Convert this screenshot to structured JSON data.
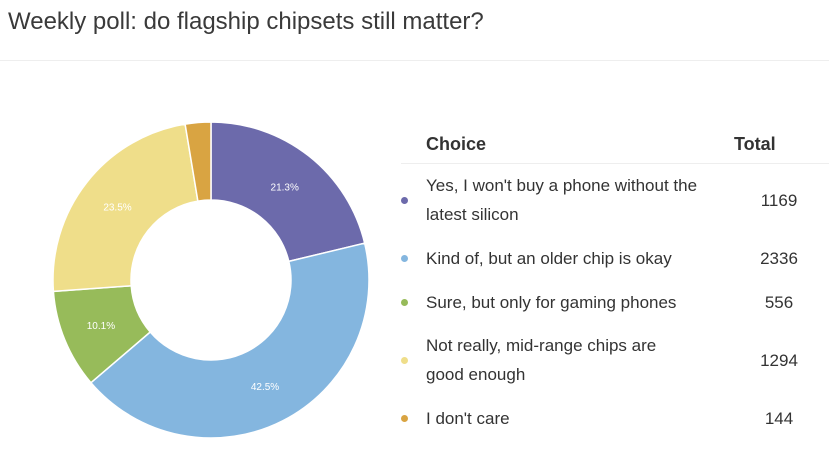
{
  "title": "Weekly poll: do flagship chipsets still matter?",
  "chart_data": {
    "type": "pie",
    "donut": true,
    "title": "Weekly poll: do flagship chipsets still matter?",
    "categories": [
      "Yes, I won't buy a phone without the latest silicon",
      "Kind of, but an older chip is okay",
      "Sure, but only for gaming phones",
      "Not really, mid-range chips are good enough",
      "I don't care"
    ],
    "values": [
      1169,
      2336,
      556,
      1294,
      144
    ],
    "labels": [
      "21.3%",
      "42.5%",
      "10.1%",
      "23.5%",
      ""
    ],
    "colors": [
      "#6c6aab",
      "#84b6df",
      "#97bb5a",
      "#efde8a",
      "#d9a442"
    ]
  },
  "table": {
    "header_choice": "Choice",
    "header_total": "Total",
    "rows": [
      {
        "choice": "Yes, I won't buy a phone without the latest silicon",
        "total": "1169"
      },
      {
        "choice": "Kind of, but an older chip is okay",
        "total": "2336"
      },
      {
        "choice": "Sure, but only for gaming phones",
        "total": "556"
      },
      {
        "choice": "Not really, mid-range chips are good enough",
        "total": "1294"
      },
      {
        "choice": "I don't care",
        "total": "144"
      }
    ]
  }
}
